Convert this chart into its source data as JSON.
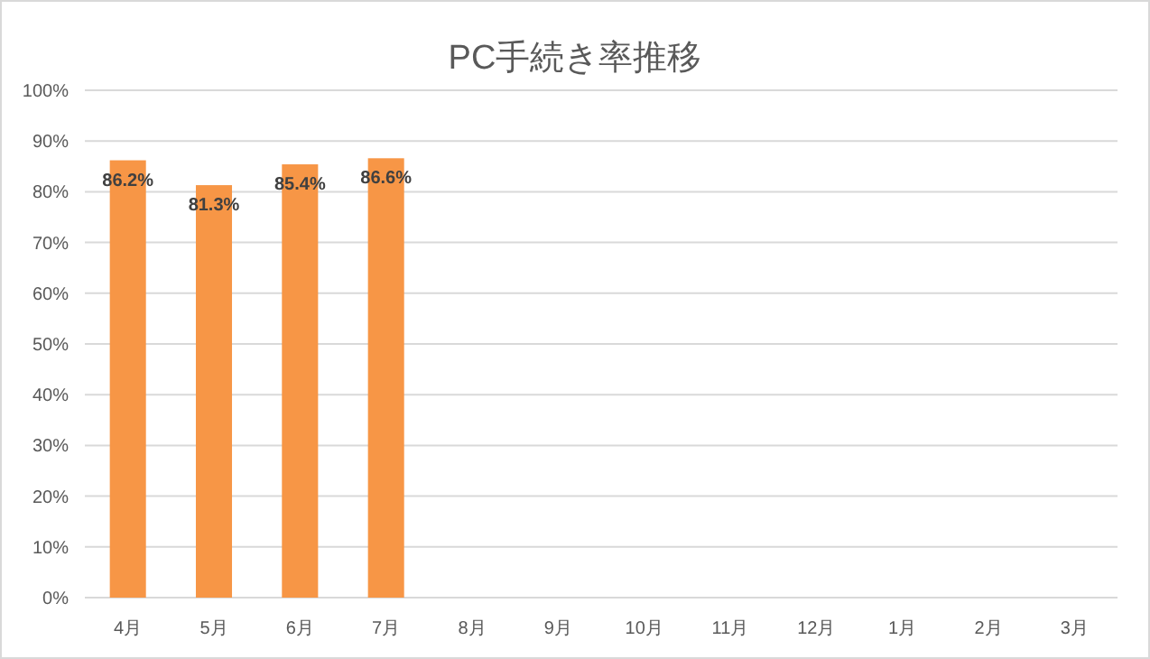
{
  "chart_data": {
    "type": "bar",
    "title": "PC手続き率推移",
    "categories": [
      "4月",
      "5月",
      "6月",
      "7月",
      "8月",
      "9月",
      "10月",
      "11月",
      "12月",
      "1月",
      "2月",
      "3月"
    ],
    "values": [
      86.2,
      81.3,
      85.4,
      86.6,
      null,
      null,
      null,
      null,
      null,
      null,
      null,
      null
    ],
    "value_labels": [
      "86.2%",
      "81.3%",
      "85.4%",
      "86.6%",
      null,
      null,
      null,
      null,
      null,
      null,
      null,
      null
    ],
    "color": "#f79646",
    "ylim": [
      0,
      100
    ],
    "yticks": [
      {
        "value": 0,
        "label": "0%"
      },
      {
        "value": 10,
        "label": "10%"
      },
      {
        "value": 20,
        "label": "20%"
      },
      {
        "value": 30,
        "label": "30%"
      },
      {
        "value": 40,
        "label": "40%"
      },
      {
        "value": 50,
        "label": "50%"
      },
      {
        "value": 60,
        "label": "60%"
      },
      {
        "value": 70,
        "label": "70%"
      },
      {
        "value": 80,
        "label": "80%"
      },
      {
        "value": 90,
        "label": "90%"
      },
      {
        "value": 100,
        "label": "100%"
      }
    ],
    "grid": "y"
  }
}
